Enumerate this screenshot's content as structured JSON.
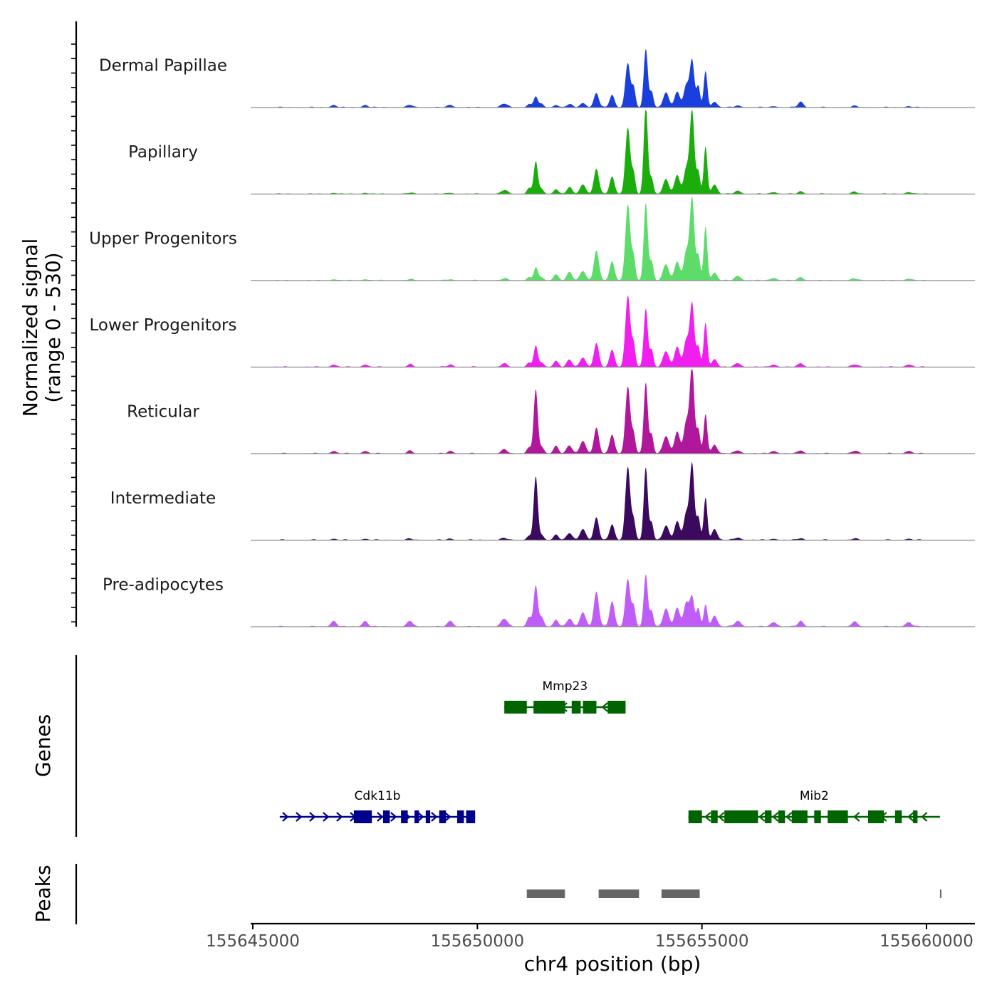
{
  "chart_data": {
    "type": "area",
    "title": "",
    "xlabel": "chr4 position (bp)",
    "ylabel_line1": "Normalized signal",
    "ylabel_line2": "(range 0 - 530)",
    "xlim": [
      155645000,
      155661000
    ],
    "ylim": [
      0,
      530
    ],
    "x_ticks": [
      155645000,
      155650000,
      155655000,
      155660000
    ],
    "x_tick_labels": [
      "155645000",
      "155650000",
      "155655000",
      "155660000"
    ],
    "profile_peaks": [
      {
        "pos": 155646800,
        "w": 60,
        "h": 0.02
      },
      {
        "pos": 155647500,
        "w": 60,
        "h": 0.02
      },
      {
        "pos": 155648500,
        "w": 60,
        "h": 0.02
      },
      {
        "pos": 155649400,
        "w": 60,
        "h": 0.02
      },
      {
        "pos": 155650600,
        "w": 70,
        "h": 0.03
      },
      {
        "pos": 155651150,
        "w": 50,
        "h": 0.05
      },
      {
        "pos": 155651300,
        "w": 45,
        "h": 0.17
      },
      {
        "pos": 155651430,
        "w": 50,
        "h": 0.05
      },
      {
        "pos": 155651750,
        "w": 55,
        "h": 0.04
      },
      {
        "pos": 155652050,
        "w": 60,
        "h": 0.05
      },
      {
        "pos": 155652350,
        "w": 65,
        "h": 0.07
      },
      {
        "pos": 155652650,
        "w": 55,
        "h": 0.14
      },
      {
        "pos": 155653000,
        "w": 55,
        "h": 0.12
      },
      {
        "pos": 155653350,
        "w": 55,
        "h": 0.49
      },
      {
        "pos": 155653480,
        "w": 40,
        "h": 0.18
      },
      {
        "pos": 155653750,
        "w": 45,
        "h": 0.72
      },
      {
        "pos": 155653880,
        "w": 40,
        "h": 0.14
      },
      {
        "pos": 155654200,
        "w": 65,
        "h": 0.12
      },
      {
        "pos": 155654450,
        "w": 60,
        "h": 0.17
      },
      {
        "pos": 155654650,
        "w": 55,
        "h": 0.25
      },
      {
        "pos": 155654780,
        "w": 50,
        "h": 0.8
      },
      {
        "pos": 155654920,
        "w": 40,
        "h": 0.22
      },
      {
        "pos": 155655080,
        "w": 40,
        "h": 0.38
      },
      {
        "pos": 155655280,
        "w": 60,
        "h": 0.07
      },
      {
        "pos": 155655800,
        "w": 70,
        "h": 0.03
      },
      {
        "pos": 155656600,
        "w": 70,
        "h": 0.02
      },
      {
        "pos": 155657200,
        "w": 60,
        "h": 0.03
      },
      {
        "pos": 155658400,
        "w": 70,
        "h": 0.02
      },
      {
        "pos": 155659600,
        "w": 70,
        "h": 0.02
      }
    ],
    "series": [
      {
        "name": "Dermal Papillae",
        "color": "#1a3fdc",
        "xmin": 155645000,
        "xmax": 155660000,
        "peak_values": [
          8,
          8,
          8,
          8,
          12,
          10,
          35,
          10,
          8,
          10,
          14,
          45,
          40,
          140,
          60,
          185,
          50,
          45,
          50,
          70,
          150,
          65,
          115,
          18,
          6,
          4,
          18,
          4,
          4
        ]
      },
      {
        "name": "Papillary",
        "color": "#1aad0c",
        "xmin": 155645400,
        "xmax": 155660300,
        "peak_values": [
          4,
          4,
          4,
          4,
          12,
          18,
          103,
          15,
          15,
          20,
          30,
          80,
          55,
          210,
          60,
          283,
          50,
          45,
          60,
          80,
          265,
          70,
          150,
          30,
          10,
          6,
          8,
          6,
          6
        ]
      },
      {
        "name": "Upper Progenitors",
        "color": "#5ddc6a",
        "xmin": 155645400,
        "xmax": 155660300,
        "peak_values": [
          4,
          4,
          4,
          4,
          6,
          10,
          40,
          10,
          20,
          25,
          30,
          95,
          60,
          240,
          70,
          245,
          60,
          50,
          60,
          90,
          260,
          80,
          170,
          25,
          14,
          8,
          10,
          6,
          6
        ]
      },
      {
        "name": "Lower Progenitors",
        "color": "#f01ff0",
        "xmin": 155645400,
        "xmax": 155660300,
        "peak_values": [
          8,
          8,
          8,
          8,
          10,
          14,
          65,
          14,
          20,
          22,
          30,
          75,
          55,
          225,
          70,
          185,
          55,
          50,
          65,
          85,
          200,
          65,
          140,
          25,
          12,
          8,
          12,
          8,
          8
        ]
      },
      {
        "name": "Reticular",
        "color": "#b0179b",
        "xmin": 155645400,
        "xmax": 155660300,
        "peak_values": [
          8,
          8,
          8,
          8,
          12,
          20,
          200,
          20,
          25,
          25,
          40,
          80,
          60,
          210,
          60,
          225,
          60,
          55,
          70,
          100,
          275,
          75,
          125,
          28,
          10,
          8,
          10,
          8,
          8
        ]
      },
      {
        "name": "Intermediate",
        "color": "#3b0a5e",
        "xmin": 155645400,
        "xmax": 155660300,
        "peak_values": [
          4,
          4,
          4,
          4,
          6,
          14,
          200,
          14,
          18,
          22,
          35,
          70,
          50,
          230,
          60,
          230,
          55,
          45,
          60,
          85,
          240,
          70,
          135,
          35,
          8,
          4,
          6,
          4,
          4
        ]
      },
      {
        "name": "Pre-adipocytes",
        "color": "#c05cf7",
        "xmin": 155645000,
        "xmax": 155660300,
        "peak_values": [
          18,
          18,
          18,
          18,
          25,
          30,
          130,
          28,
          22,
          25,
          45,
          110,
          80,
          150,
          60,
          165,
          50,
          55,
          60,
          75,
          95,
          55,
          70,
          35,
          18,
          14,
          18,
          14,
          14
        ]
      }
    ],
    "genes_track_label": "Genes",
    "genes": [
      {
        "name": "Mmp23",
        "start": 155650600,
        "end": 155653300,
        "strand": "-",
        "row": 1,
        "color": "#006400",
        "exons": [
          [
            155650600,
            155651100
          ],
          [
            155651250,
            155651950
          ],
          [
            155652100,
            155652300
          ],
          [
            155652350,
            155652650
          ],
          [
            155652900,
            155653300
          ]
        ]
      },
      {
        "name": "Cdk11b",
        "start": 155645600,
        "end": 155649950,
        "strand": "+",
        "row": 2,
        "color": "#00008b",
        "exons": [
          [
            155647250,
            155647650
          ],
          [
            155647900,
            155648050
          ],
          [
            155648300,
            155648450
          ],
          [
            155648600,
            155648700
          ],
          [
            155648850,
            155648950
          ],
          [
            155649150,
            155649300
          ],
          [
            155649550,
            155649700
          ],
          [
            155649750,
            155649950
          ]
        ]
      },
      {
        "name": "Mib2",
        "start": 155654700,
        "end": 155660300,
        "strand": "-",
        "row": 2,
        "color": "#006400",
        "exons": [
          [
            155654700,
            155655000
          ],
          [
            155655200,
            155655350
          ],
          [
            155655500,
            155656250
          ],
          [
            155656400,
            155656550
          ],
          [
            155656700,
            155656850
          ],
          [
            155657000,
            155657350
          ],
          [
            155657500,
            155657650
          ],
          [
            155657800,
            155658250
          ],
          [
            155658700,
            155659050
          ],
          [
            155659300,
            155659450
          ],
          [
            155659700,
            155659800
          ]
        ]
      }
    ],
    "peaks_track_label": "Peaks",
    "peaks_color": "#666666",
    "peaks": [
      [
        155651100,
        155651950
      ],
      [
        155652700,
        155653600
      ],
      [
        155654100,
        155654950
      ],
      [
        155660300,
        155660330
      ]
    ]
  }
}
